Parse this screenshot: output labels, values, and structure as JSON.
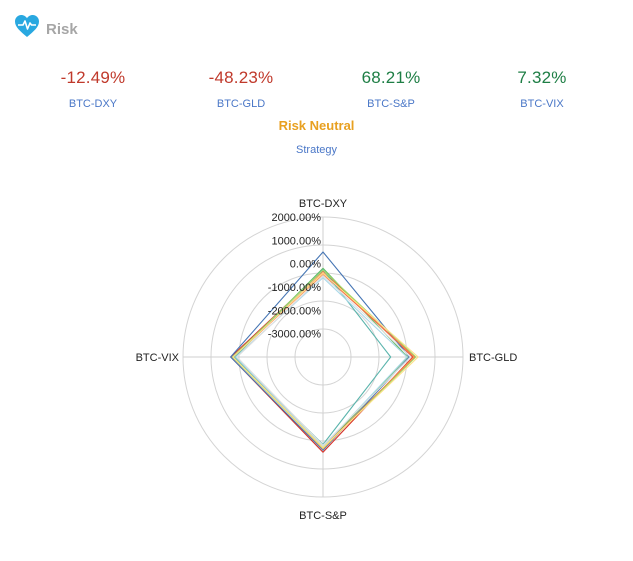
{
  "header": {
    "title": "Risk",
    "icon": "heart-pulse-icon",
    "icon_color": "#29a8e0"
  },
  "metrics": [
    {
      "value": "-12.49%",
      "label": "BTC-DXY",
      "color": "#c0392b"
    },
    {
      "value": "-48.23%",
      "label": "BTC-GLD",
      "color": "#c0392b"
    },
    {
      "value": "68.21%",
      "label": "BTC-S&P",
      "color": "#1e7e45"
    },
    {
      "value": "7.32%",
      "label": "BTC-VIX",
      "color": "#1e7e45"
    }
  ],
  "mode_label": "Risk Neutral",
  "strategy_label": "Strategy",
  "chart_data": {
    "type": "radar",
    "axes": [
      "BTC-DXY",
      "BTC-GLD",
      "BTC-S&P",
      "BTC-VIX"
    ],
    "tick_labels": [
      "2000.00%",
      "1000.00%",
      "0.00%",
      "-1000.00%",
      "-2000.00%",
      "-3000.00%"
    ],
    "rlim": [
      -4000,
      2000
    ],
    "grid": true,
    "series": [
      {
        "color": "#d73027",
        "values": [
          -300,
          -150,
          80,
          -50
        ]
      },
      {
        "color": "#4575b4",
        "values": [
          500,
          -300,
          0,
          -40
        ]
      },
      {
        "color": "#66bd63",
        "values": [
          -200,
          -380,
          -80,
          -220
        ]
      },
      {
        "color": "#fdae61",
        "values": [
          -380,
          -100,
          -60,
          -180
        ]
      },
      {
        "color": "#f46d43",
        "values": [
          -450,
          -60,
          -120,
          -160
        ]
      },
      {
        "color": "#5ab4ac",
        "values": [
          -250,
          -1100,
          -250,
          -200
        ]
      },
      {
        "color": "#abd9e9",
        "values": [
          -600,
          -400,
          -160,
          -260
        ]
      },
      {
        "color": "#a6d96a",
        "values": [
          -280,
          -20,
          -100,
          -120
        ]
      },
      {
        "color": "#fee08b",
        "values": [
          -420,
          80,
          -120,
          -150
        ]
      },
      {
        "color": "#e0e0e0",
        "values": [
          -520,
          -250,
          -220,
          -320
        ]
      }
    ]
  }
}
